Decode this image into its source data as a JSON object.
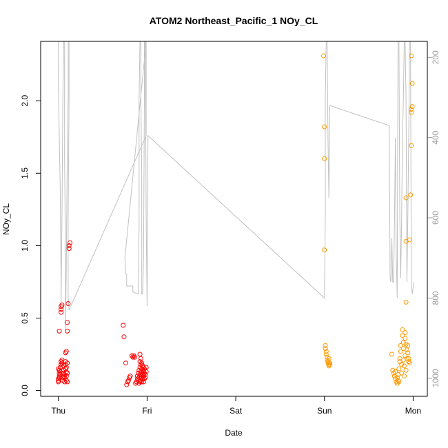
{
  "chart_data": {
    "type": "scatter",
    "title": "ATOM2 Northeast_Pacific_1 NOy_CL",
    "xlabel": "Date",
    "ylabel": "NOy_CL",
    "x_ticks": [
      "Thu",
      "Fri",
      "Sat",
      "Sun",
      "Mon"
    ],
    "x_tick_values": [
      0,
      1,
      2,
      3,
      4
    ],
    "xlim": [
      -0.2,
      4.16
    ],
    "y_ticks": [
      "0.0",
      "0.5",
      "1.0",
      "1.5",
      "2.0"
    ],
    "y_tick_values": [
      0,
      0.5,
      1.0,
      1.5,
      2.0
    ],
    "ylim": [
      -0.04,
      2.41
    ],
    "y2_ticks": [
      "200",
      "400",
      "600",
      "800",
      "1000"
    ],
    "y2_tick_values": [
      200,
      400,
      600,
      800,
      1000
    ],
    "y2lim": [
      1045,
      160
    ],
    "colors": {
      "series_thu_fri": "#ff0000",
      "series_sun_mon": "#ff9900",
      "pressure_line": "#c0c0c0"
    },
    "series": [
      {
        "color": "#ff0000",
        "points": [
          [
            0.01,
            0.41
          ],
          [
            0.03,
            0.54
          ],
          [
            0.03,
            0.56
          ],
          [
            0.03,
            0.58
          ],
          [
            0.04,
            0.59
          ],
          [
            0.12,
            0.98
          ],
          [
            0.12,
            1.0
          ],
          [
            0.13,
            1.02
          ],
          [
            0.11,
            0.6
          ],
          [
            0.1,
            0.47
          ],
          [
            0.1,
            0.41
          ],
          [
            0.09,
            0.27
          ],
          [
            0.08,
            0.26
          ],
          [
            0.0,
            0.06
          ],
          [
            0.0,
            0.07
          ],
          [
            0.0,
            0.08
          ],
          [
            0.01,
            0.09
          ],
          [
            0.01,
            0.1
          ],
          [
            0.01,
            0.12
          ],
          [
            0.01,
            0.14
          ],
          [
            0.0,
            0.15
          ],
          [
            0.02,
            0.11
          ],
          [
            0.02,
            0.13
          ],
          [
            0.02,
            0.16
          ],
          [
            0.03,
            0.18
          ],
          [
            0.03,
            0.2
          ],
          [
            0.04,
            0.21
          ],
          [
            0.04,
            0.19
          ],
          [
            0.05,
            0.07
          ],
          [
            0.05,
            0.09
          ],
          [
            0.05,
            0.12
          ],
          [
            0.06,
            0.1
          ],
          [
            0.06,
            0.14
          ],
          [
            0.06,
            0.17
          ],
          [
            0.07,
            0.06
          ],
          [
            0.07,
            0.09
          ],
          [
            0.07,
            0.11
          ],
          [
            0.08,
            0.15
          ],
          [
            0.08,
            0.18
          ],
          [
            0.08,
            0.2
          ],
          [
            0.09,
            0.07
          ],
          [
            0.09,
            0.1
          ],
          [
            0.09,
            0.13
          ],
          [
            0.09,
            0.16
          ],
          [
            0.1,
            0.19
          ],
          [
            0.1,
            0.06
          ],
          [
            0.1,
            0.12
          ],
          [
            0.73,
            0.45
          ],
          [
            0.74,
            0.37
          ],
          [
            0.76,
            0.19
          ],
          [
            0.77,
            0.04
          ],
          [
            0.78,
            0.06
          ],
          [
            0.79,
            0.07
          ],
          [
            0.8,
            0.09
          ],
          [
            0.81,
            0.1
          ],
          [
            0.83,
            0.24
          ],
          [
            0.84,
            0.23
          ],
          [
            0.85,
            0.24
          ],
          [
            0.86,
            0.23
          ],
          [
            0.87,
            0.05
          ],
          [
            0.88,
            0.06
          ],
          [
            0.89,
            0.08
          ],
          [
            0.89,
            0.1
          ],
          [
            0.9,
            0.07
          ],
          [
            0.9,
            0.12
          ],
          [
            0.91,
            0.05
          ],
          [
            0.91,
            0.09
          ],
          [
            0.91,
            0.14
          ],
          [
            0.92,
            0.06
          ],
          [
            0.92,
            0.11
          ],
          [
            0.92,
            0.16
          ],
          [
            0.92,
            0.2
          ],
          [
            0.92,
            0.25
          ],
          [
            0.93,
            0.07
          ],
          [
            0.93,
            0.1
          ],
          [
            0.93,
            0.13
          ],
          [
            0.93,
            0.18
          ],
          [
            0.93,
            0.22
          ],
          [
            0.94,
            0.06
          ],
          [
            0.94,
            0.09
          ],
          [
            0.94,
            0.12
          ],
          [
            0.94,
            0.15
          ],
          [
            0.94,
            0.19
          ],
          [
            0.95,
            0.08
          ],
          [
            0.95,
            0.11
          ],
          [
            0.95,
            0.14
          ],
          [
            0.95,
            0.17
          ],
          [
            0.96,
            0.06
          ],
          [
            0.96,
            0.1
          ],
          [
            0.96,
            0.13
          ],
          [
            0.96,
            0.16
          ],
          [
            0.97,
            0.08
          ],
          [
            0.97,
            0.12
          ],
          [
            0.97,
            0.15
          ],
          [
            0.98,
            0.09
          ],
          [
            0.98,
            0.11
          ],
          [
            0.99,
            0.13
          ],
          [
            0.99,
            0.16
          ]
        ]
      },
      {
        "color": "#ff9900",
        "points": [
          [
            2.99,
            2.31
          ],
          [
            3.0,
            1.82
          ],
          [
            3.0,
            1.6
          ],
          [
            3.0,
            0.97
          ],
          [
            3.01,
            0.31
          ],
          [
            3.01,
            0.29
          ],
          [
            3.02,
            0.27
          ],
          [
            3.02,
            0.25
          ],
          [
            3.03,
            0.23
          ],
          [
            3.03,
            0.21
          ],
          [
            3.04,
            0.2
          ],
          [
            3.04,
            0.19
          ],
          [
            3.05,
            0.18
          ],
          [
            3.05,
            0.17
          ],
          [
            3.05,
            0.22
          ],
          [
            3.06,
            0.19
          ],
          [
            3.06,
            0.18
          ],
          [
            3.76,
            0.25
          ],
          [
            3.77,
            0.14
          ],
          [
            3.78,
            0.12
          ],
          [
            3.79,
            0.1
          ],
          [
            3.8,
            0.13
          ],
          [
            3.8,
            0.08
          ],
          [
            3.81,
            0.06
          ],
          [
            3.82,
            0.05
          ],
          [
            3.82,
            0.09
          ],
          [
            3.83,
            0.07
          ],
          [
            3.83,
            0.11
          ],
          [
            3.84,
            0.06
          ],
          [
            3.84,
            0.15
          ],
          [
            3.85,
            0.2
          ],
          [
            3.85,
            0.22
          ],
          [
            3.86,
            0.27
          ],
          [
            3.86,
            0.31
          ],
          [
            3.87,
            0.18
          ],
          [
            3.87,
            0.12
          ],
          [
            3.88,
            0.42
          ],
          [
            3.88,
            0.38
          ],
          [
            3.89,
            0.33
          ],
          [
            3.89,
            0.29
          ],
          [
            3.89,
            0.21
          ],
          [
            3.9,
            0.17
          ],
          [
            3.9,
            0.1
          ],
          [
            3.91,
            0.4
          ],
          [
            3.91,
            0.36
          ],
          [
            3.91,
            0.24
          ],
          [
            3.92,
            0.32
          ],
          [
            3.92,
            0.14
          ],
          [
            3.92,
            0.61
          ],
          [
            3.92,
            1.03
          ],
          [
            3.92,
            1.33
          ],
          [
            3.93,
            0.22
          ],
          [
            3.93,
            0.28
          ],
          [
            3.94,
            0.31
          ],
          [
            3.94,
            0.26
          ],
          [
            3.95,
            0.22
          ],
          [
            3.95,
            0.2
          ],
          [
            3.96,
            0.19
          ],
          [
            3.96,
            1.04
          ],
          [
            3.97,
            1.35
          ],
          [
            3.98,
            1.69
          ],
          [
            3.98,
            1.92
          ],
          [
            3.98,
            1.94
          ],
          [
            3.99,
            1.96
          ],
          [
            3.98,
            2.31
          ],
          [
            3.99,
            2.12
          ]
        ]
      }
    ],
    "pressure_line": {
      "color": "#c0c0c0",
      "axis": "y2",
      "points": [
        [
          0.0,
          160
        ],
        [
          0.0,
          270
        ],
        [
          0.02,
          520
        ],
        [
          0.03,
          760
        ],
        [
          0.03,
          820
        ],
        [
          0.04,
          600
        ],
        [
          0.05,
          300
        ],
        [
          0.06,
          160
        ],
        [
          0.07,
          160
        ],
        [
          0.07,
          450
        ],
        [
          0.08,
          700
        ],
        [
          0.08,
          880
        ],
        [
          0.09,
          700
        ],
        [
          0.1,
          450
        ],
        [
          0.11,
          300
        ],
        [
          0.11,
          160
        ],
        [
          0.12,
          160
        ],
        [
          0.12,
          300
        ],
        [
          0.11,
          600
        ],
        [
          0.11,
          800
        ],
        [
          0.12,
          830
        ],
        [
          0.99,
          395
        ],
        [
          0.99,
          160
        ],
        [
          0.75,
          700
        ],
        [
          0.76,
          740
        ],
        [
          0.77,
          740
        ],
        [
          0.77,
          770
        ],
        [
          0.83,
          770
        ],
        [
          0.84,
          770
        ],
        [
          0.84,
          785
        ],
        [
          0.9,
          790
        ],
        [
          0.91,
          620
        ],
        [
          0.91,
          300
        ],
        [
          0.92,
          160
        ],
        [
          0.93,
          160
        ],
        [
          0.93,
          300
        ],
        [
          0.94,
          500
        ],
        [
          0.94,
          790
        ],
        [
          0.95,
          790
        ],
        [
          0.96,
          700
        ],
        [
          0.97,
          300
        ],
        [
          0.97,
          160
        ],
        [
          0.98,
          160
        ],
        [
          0.99,
          600
        ],
        [
          1.0,
          820
        ],
        [
          1.01,
          395
        ],
        [
          3.0,
          800
        ],
        [
          3.01,
          600
        ],
        [
          3.01,
          300
        ],
        [
          3.02,
          160
        ],
        [
          3.03,
          160
        ],
        [
          3.04,
          400
        ],
        [
          3.05,
          550
        ],
        [
          3.06,
          320
        ],
        [
          3.73,
          370
        ],
        [
          3.74,
          750
        ],
        [
          3.75,
          760
        ],
        [
          3.76,
          650
        ],
        [
          3.77,
          760
        ],
        [
          3.78,
          760
        ],
        [
          3.79,
          600
        ],
        [
          3.8,
          400
        ],
        [
          3.81,
          700
        ],
        [
          3.82,
          800
        ],
        [
          3.83,
          160
        ],
        [
          3.84,
          160
        ],
        [
          3.85,
          600
        ],
        [
          3.86,
          750
        ],
        [
          3.87,
          600
        ],
        [
          3.88,
          400
        ],
        [
          3.89,
          300
        ],
        [
          3.9,
          160
        ],
        [
          3.91,
          160
        ],
        [
          3.92,
          300
        ],
        [
          3.93,
          760
        ],
        [
          3.94,
          600
        ],
        [
          3.95,
          400
        ],
        [
          3.96,
          160
        ],
        [
          3.97,
          160
        ],
        [
          3.98,
          760
        ],
        [
          3.99,
          790
        ],
        [
          4.01,
          760
        ]
      ]
    }
  }
}
